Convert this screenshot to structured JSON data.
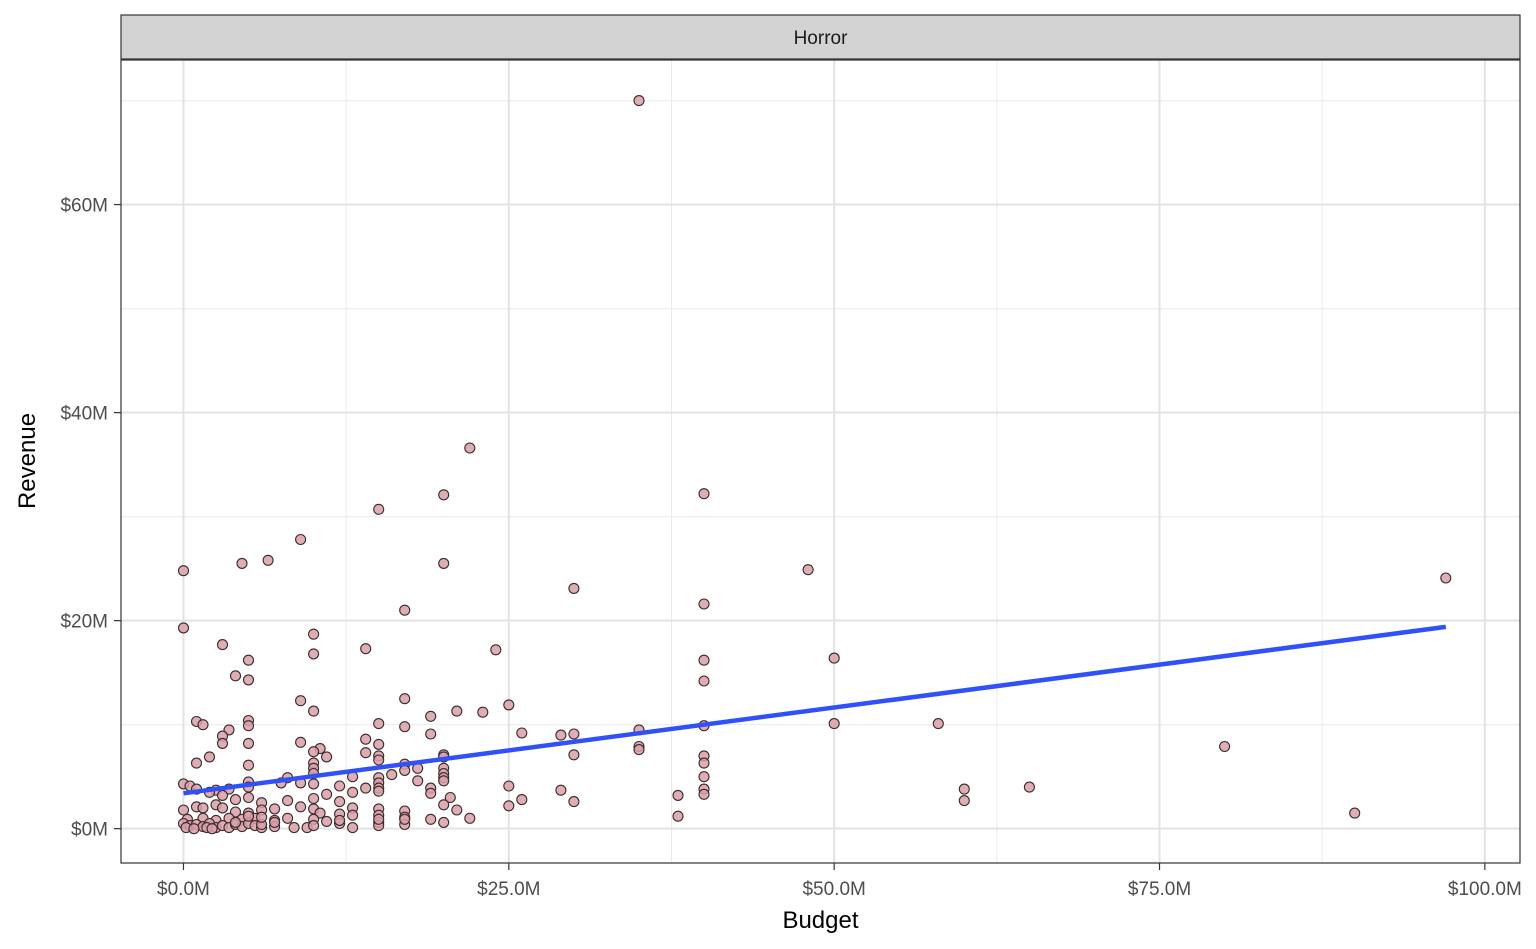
{
  "chart_data": {
    "type": "scatter",
    "facet_label": "Horror",
    "xlabel": "Budget",
    "ylabel": "Revenue",
    "xlim": [
      -4.8,
      102.7
    ],
    "ylim": [
      -3.3,
      73.9
    ],
    "x_ticks": [
      {
        "value": 0,
        "label": "$0.0M"
      },
      {
        "value": 25,
        "label": "$25.0M"
      },
      {
        "value": 50,
        "label": "$50.0M"
      },
      {
        "value": 75,
        "label": "$75.0M"
      },
      {
        "value": 100,
        "label": "$100.0M"
      }
    ],
    "y_ticks": [
      {
        "value": 0,
        "label": "$0M"
      },
      {
        "value": 20,
        "label": "$20M"
      },
      {
        "value": 40,
        "label": "$40M"
      },
      {
        "value": 60,
        "label": "$60M"
      }
    ],
    "x_minor": [
      12.5,
      37.5,
      62.5,
      87.5
    ],
    "y_minor": [
      10,
      30,
      50,
      70
    ],
    "grid": true,
    "point_color": "#d9a0a8",
    "point_edge": "#3a2a2c",
    "trend_color": "#3050f8",
    "trend": {
      "x": [
        0,
        97
      ],
      "y": [
        3.4,
        19.4
      ]
    },
    "points": [
      [
        35,
        70.0
      ],
      [
        22,
        36.6
      ],
      [
        20,
        32.1
      ],
      [
        40,
        32.2
      ],
      [
        15,
        30.7
      ],
      [
        9,
        27.8
      ],
      [
        0,
        24.8
      ],
      [
        4.5,
        25.5
      ],
      [
        6.5,
        25.8
      ],
      [
        20,
        25.5
      ],
      [
        48,
        24.9
      ],
      [
        97,
        24.1
      ],
      [
        30,
        23.1
      ],
      [
        40,
        21.6
      ],
      [
        17,
        21.0
      ],
      [
        0,
        19.3
      ],
      [
        10,
        18.7
      ],
      [
        3,
        17.7
      ],
      [
        14,
        17.3
      ],
      [
        24,
        17.2
      ],
      [
        10,
        16.8
      ],
      [
        5,
        16.2
      ],
      [
        40,
        16.2
      ],
      [
        50,
        16.4
      ],
      [
        4,
        14.7
      ],
      [
        5,
        14.3
      ],
      [
        40,
        14.2
      ],
      [
        17,
        12.5
      ],
      [
        9,
        12.3
      ],
      [
        25,
        11.9
      ],
      [
        10,
        11.3
      ],
      [
        21,
        11.3
      ],
      [
        23,
        11.2
      ],
      [
        19,
        10.8
      ],
      [
        1,
        10.3
      ],
      [
        1.5,
        10.0
      ],
      [
        5,
        10.4
      ],
      [
        15,
        10.1
      ],
      [
        17,
        9.8
      ],
      [
        5,
        9.9
      ],
      [
        3.5,
        9.5
      ],
      [
        35,
        9.5
      ],
      [
        50,
        10.1
      ],
      [
        58,
        10.1
      ],
      [
        40,
        9.9
      ],
      [
        26,
        9.2
      ],
      [
        29,
        9.0
      ],
      [
        30,
        9.1
      ],
      [
        19,
        9.1
      ],
      [
        14,
        8.6
      ],
      [
        3,
        8.9
      ],
      [
        3,
        8.2
      ],
      [
        5,
        8.2
      ],
      [
        9,
        8.3
      ],
      [
        15,
        8.1
      ],
      [
        35,
        7.9
      ],
      [
        35,
        7.6
      ],
      [
        80,
        7.9
      ],
      [
        10.5,
        7.7
      ],
      [
        10,
        7.4
      ],
      [
        11,
        6.9
      ],
      [
        14,
        7.3
      ],
      [
        15,
        7.0
      ],
      [
        15,
        6.6
      ],
      [
        20,
        7.1
      ],
      [
        20,
        6.9
      ],
      [
        30,
        7.1
      ],
      [
        40,
        7.0
      ],
      [
        40,
        6.3
      ],
      [
        2,
        6.9
      ],
      [
        1,
        6.3
      ],
      [
        5,
        6.1
      ],
      [
        10,
        6.3
      ],
      [
        17,
        6.2
      ],
      [
        10,
        5.8
      ],
      [
        17,
        5.6
      ],
      [
        18,
        5.8
      ],
      [
        20,
        5.8
      ],
      [
        10,
        5.3
      ],
      [
        16,
        5.2
      ],
      [
        20,
        5.3
      ],
      [
        40,
        5.0
      ],
      [
        13,
        5.0
      ],
      [
        15,
        4.9
      ],
      [
        8,
        4.9
      ],
      [
        20,
        4.9
      ],
      [
        20,
        4.6
      ],
      [
        7.5,
        4.4
      ],
      [
        15,
        4.4
      ],
      [
        18,
        4.6
      ],
      [
        5,
        4.5
      ],
      [
        10,
        4.3
      ],
      [
        9,
        4.4
      ],
      [
        25,
        4.1
      ],
      [
        12,
        4.1
      ],
      [
        14,
        3.9
      ],
      [
        15,
        3.9
      ],
      [
        19,
        3.9
      ],
      [
        15,
        3.6
      ],
      [
        19,
        3.4
      ],
      [
        29,
        3.7
      ],
      [
        40,
        3.8
      ],
      [
        40,
        3.3
      ],
      [
        60,
        3.8
      ],
      [
        65,
        4.0
      ],
      [
        0,
        4.3
      ],
      [
        0.5,
        4.1
      ],
      [
        1,
        3.8
      ],
      [
        2.5,
        3.7
      ],
      [
        3.5,
        3.8
      ],
      [
        5,
        4.0
      ],
      [
        11,
        3.3
      ],
      [
        13,
        3.5
      ],
      [
        20.5,
        3.0
      ],
      [
        26,
        2.8
      ],
      [
        30,
        2.6
      ],
      [
        38,
        3.2
      ],
      [
        60,
        2.7
      ],
      [
        2,
        3.5
      ],
      [
        3,
        3.2
      ],
      [
        4,
        2.8
      ],
      [
        5,
        3.0
      ],
      [
        6,
        2.5
      ],
      [
        8,
        2.7
      ],
      [
        10,
        2.9
      ],
      [
        12,
        2.6
      ],
      [
        13,
        2.0
      ],
      [
        9,
        2.1
      ],
      [
        10,
        1.9
      ],
      [
        15,
        1.9
      ],
      [
        17,
        1.7
      ],
      [
        20,
        2.3
      ],
      [
        21,
        1.8
      ],
      [
        25,
        2.2
      ],
      [
        0,
        1.8
      ],
      [
        1,
        2.1
      ],
      [
        1.5,
        2.0
      ],
      [
        2.5,
        2.3
      ],
      [
        3,
        2.0
      ],
      [
        4,
        1.6
      ],
      [
        5,
        1.5
      ],
      [
        6,
        1.8
      ],
      [
        7,
        1.9
      ],
      [
        10.5,
        1.5
      ],
      [
        12,
        1.4
      ],
      [
        13,
        1.3
      ],
      [
        15,
        1.3
      ],
      [
        17,
        1.1
      ],
      [
        90,
        1.5
      ],
      [
        38,
        1.2
      ],
      [
        22,
        1.0
      ],
      [
        19,
        0.9
      ],
      [
        20,
        0.6
      ],
      [
        0.3,
        0.9
      ],
      [
        1.5,
        1.0
      ],
      [
        2.5,
        0.8
      ],
      [
        3.5,
        1.0
      ],
      [
        4.5,
        0.9
      ],
      [
        5.5,
        1.0
      ],
      [
        7,
        0.8
      ],
      [
        8,
        1.0
      ],
      [
        10,
        0.9
      ],
      [
        11,
        0.7
      ],
      [
        12,
        0.5
      ],
      [
        15,
        0.6
      ],
      [
        17,
        0.4
      ],
      [
        0,
        0.5
      ],
      [
        0.5,
        0.3
      ],
      [
        1,
        0.4
      ],
      [
        1.5,
        0.2
      ],
      [
        2,
        0.5
      ],
      [
        2.5,
        0.1
      ],
      [
        3,
        0.3
      ],
      [
        3.5,
        0.1
      ],
      [
        4,
        0.4
      ],
      [
        4.5,
        0.2
      ],
      [
        5,
        0.5
      ],
      [
        5.5,
        0.3
      ],
      [
        6,
        0.1
      ],
      [
        7,
        0.2
      ],
      [
        8.5,
        0.1
      ],
      [
        9.5,
        0.1
      ],
      [
        10,
        0.3
      ],
      [
        13,
        0.1
      ],
      [
        15,
        0.3
      ],
      [
        0.2,
        0.1
      ],
      [
        0.8,
        0.0
      ],
      [
        1.8,
        0.1
      ],
      [
        2.2,
        0.0
      ],
      [
        6,
        0.4
      ],
      [
        7,
        0.6
      ],
      [
        12,
        0.8
      ],
      [
        15,
        0.9
      ],
      [
        17,
        0.9
      ],
      [
        5,
        1.2
      ],
      [
        6,
        1.1
      ],
      [
        4,
        0.6
      ]
    ]
  }
}
